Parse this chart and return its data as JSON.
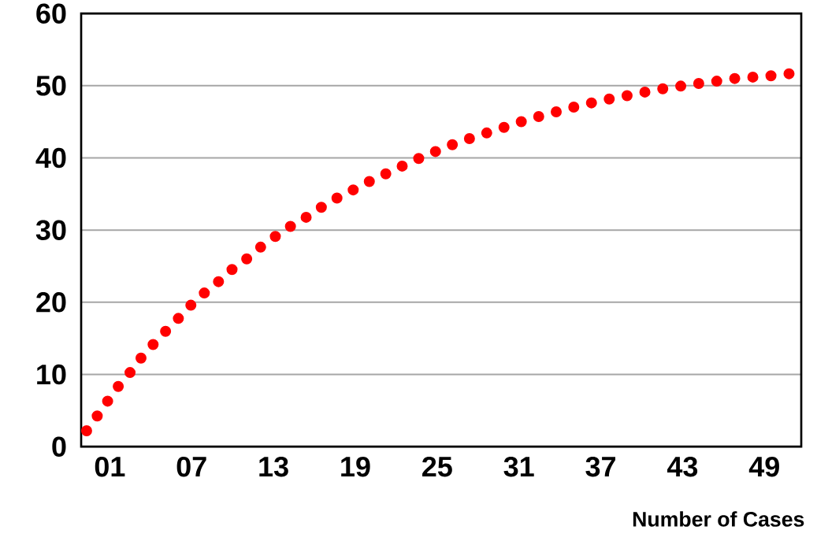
{
  "chart_data": {
    "type": "line",
    "xlabel": "Number of Cases",
    "x": [
      -0.7,
      0.1,
      0.8,
      1.6,
      2.5,
      3.3,
      4.2,
      5.1,
      6.1,
      7.0,
      8.0,
      9.0,
      10.0,
      11.1,
      12.1,
      13.2,
      14.4,
      15.6,
      16.7,
      17.9,
      19.1,
      20.3,
      21.6,
      22.8,
      24.1,
      25.3,
      26.6,
      27.9,
      29.2,
      30.5,
      31.8,
      33.2,
      34.5,
      35.8,
      37.2,
      38.6,
      39.9,
      41.3,
      42.7,
      44.1,
      45.4,
      46.8,
      48.2,
      49.6,
      51.0
    ],
    "series": [
      {
        "color": "#ff0000",
        "values": [
          2.2,
          4.3,
          6.2,
          8.3,
          10.3,
          12.3,
          14.2,
          16.0,
          17.9,
          19.7,
          21.4,
          22.9,
          24.6,
          26.1,
          27.7,
          29.2,
          30.7,
          32.0,
          33.4,
          34.7,
          35.8,
          37.0,
          38.1,
          39.2,
          40.3,
          41.2,
          42.2,
          43.0,
          43.8,
          44.6,
          45.4,
          46.1,
          46.8,
          47.4,
          48.0,
          48.5,
          49.0,
          49.5,
          49.9,
          50.3,
          50.6,
          51.0,
          51.2,
          51.4,
          51.7
        ]
      }
    ],
    "xlim": [
      -1.1,
      51.7
    ],
    "ylim": [
      0,
      60
    ],
    "xticks": [
      {
        "value": 1,
        "label": "01"
      },
      {
        "value": 7,
        "label": "07"
      },
      13,
      19,
      25,
      31,
      37,
      43,
      49
    ],
    "yticks": [
      0,
      10,
      20,
      30,
      40,
      50,
      60
    ],
    "grid": "y",
    "marker": "none",
    "line_style": "dotted"
  }
}
